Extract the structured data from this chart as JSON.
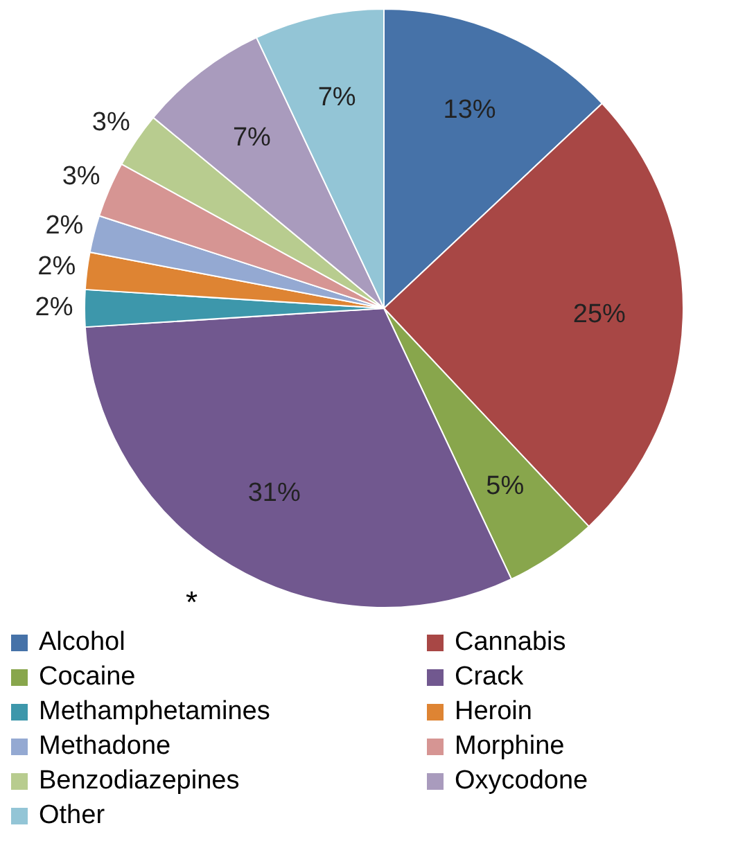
{
  "chart_data": {
    "type": "pie",
    "categories": [
      "Alcohol",
      "Cannabis",
      "Cocaine",
      "Crack",
      "Methamphetamines",
      "Heroin",
      "Methadone",
      "Morphine",
      "Benzodiazepines",
      "Oxycodone",
      "Other"
    ],
    "values": [
      13,
      25,
      5,
      31,
      2,
      2,
      2,
      3,
      3,
      7,
      7
    ],
    "colors": [
      "#4672a8",
      "#a84745",
      "#88a64c",
      "#71588f",
      "#3d97ab",
      "#de8433",
      "#94a9d2",
      "#d69593",
      "#b8cc8f",
      "#a99bbd",
      "#93c5d6"
    ],
    "value_labels": [
      "13%",
      "25%",
      "5%",
      "31%",
      "2%",
      "2%",
      "2%",
      "3%",
      "3%",
      "7%",
      "7%"
    ],
    "legend": "bottom",
    "annotations": [
      "*"
    ]
  }
}
